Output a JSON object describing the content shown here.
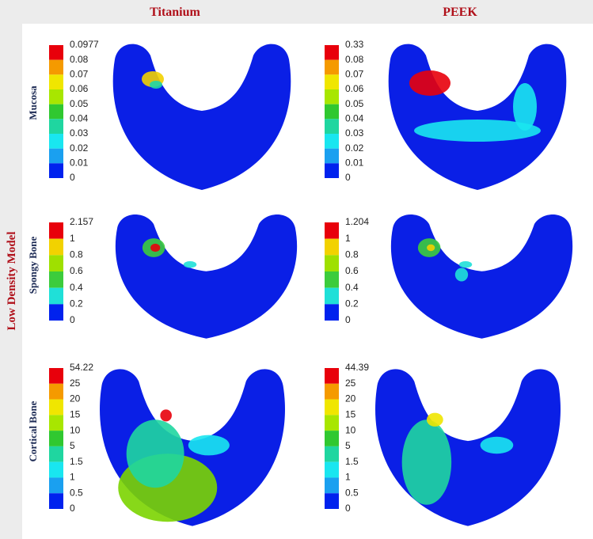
{
  "header": {
    "columns": [
      "Titanium",
      "PEEK"
    ]
  },
  "side_label": "Low Density Model",
  "rows": [
    {
      "label": "Mucosa",
      "legends": [
        [
          "0.0977",
          "0.08",
          "0.07",
          "0.06",
          "0.05",
          "0.04",
          "0.03",
          "0.02",
          "0.01",
          "0"
        ],
        [
          "0.33",
          "0.08",
          "0.07",
          "0.06",
          "0.05",
          "0.04",
          "0.03",
          "0.02",
          "0.01",
          "0"
        ]
      ]
    },
    {
      "label": "Spongy Bone",
      "legends": [
        [
          "2.157",
          "1",
          "0.8",
          "0.6",
          "0.4",
          "0.2",
          "0"
        ],
        [
          "1.204",
          "1",
          "0.8",
          "0.6",
          "0.4",
          "0.2",
          "0"
        ]
      ]
    },
    {
      "label": "Cortical Bone",
      "legends": [
        [
          "54.22",
          "25",
          "20",
          "15",
          "10",
          "5",
          "1.5",
          "1",
          "0.5",
          "0"
        ],
        [
          "44.39",
          "25",
          "20",
          "15",
          "10",
          "5",
          "1.5",
          "1",
          "0.5",
          "0"
        ]
      ]
    }
  ]
}
